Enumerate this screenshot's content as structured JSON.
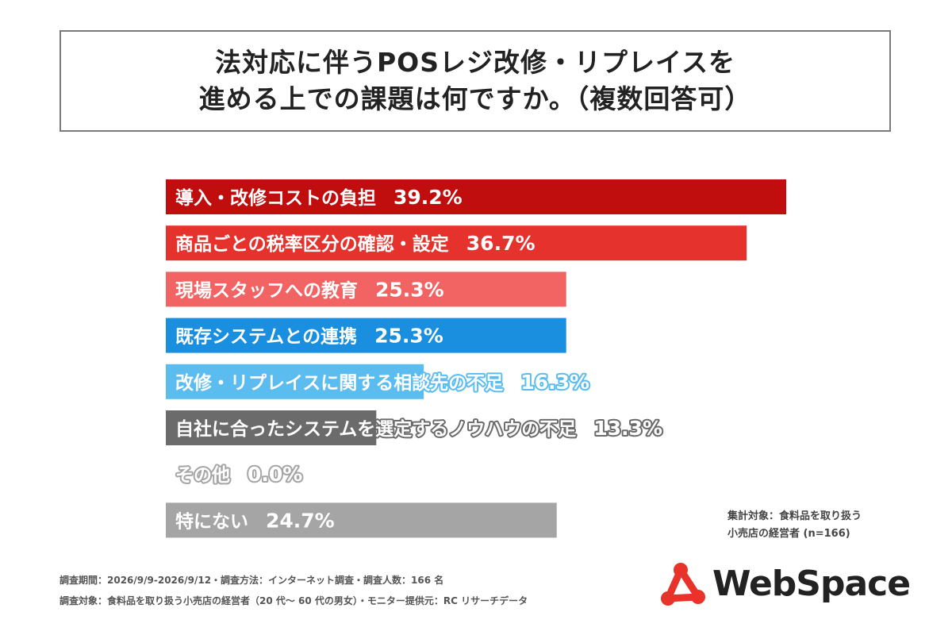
{
  "title": {
    "line1": "法対応に伴うPOSレジ改修・リプレイスを",
    "line2": "進める上での課題は何ですか。（複数回答可）"
  },
  "chart_data": {
    "type": "bar",
    "orientation": "horizontal",
    "categories": [
      "導入・改修コストの負担",
      "商品ごとの税率区分の確認・設定",
      "現場スタッフへの教育",
      "既存システムとの連携",
      "改修・リプレイスに関する相談先の不足",
      "自社に合ったシステムを選定するノウハウの不足",
      "その他",
      "特にない"
    ],
    "values": [
      39.2,
      36.7,
      25.3,
      25.3,
      16.3,
      13.3,
      0.0,
      24.7
    ],
    "value_labels": [
      "39.2%",
      "36.7%",
      "25.3%",
      "25.3%",
      "16.3%",
      "13.3%",
      "0.0%",
      "24.7%"
    ],
    "colors": [
      "#c00d0d",
      "#e6322d",
      "#f26363",
      "#1a8fe0",
      "#5bbcef",
      "#6b6b6b",
      "#a5a5a5",
      "#a5a5a5"
    ],
    "unit": "%",
    "xlim": [
      0,
      40
    ],
    "grid": false,
    "legend": "none"
  },
  "note": {
    "line1": "集計対象：食料品を取り扱う",
    "line2": "小売店の経営者 (n=166)"
  },
  "footer": {
    "line1": "調査期間：2026/9/9-2026/9/12・調査方法：インターネット調査・調査人数：166 名",
    "line2": "調査対象：食料品を取り扱う小売店の経営者（20 代～ 60 代の男女）・モニター提供元：RC リサーチデータ"
  },
  "logo": {
    "text": "WebSpace",
    "accent_color": "#e8332b",
    "icon": "network-triangle-icon"
  }
}
